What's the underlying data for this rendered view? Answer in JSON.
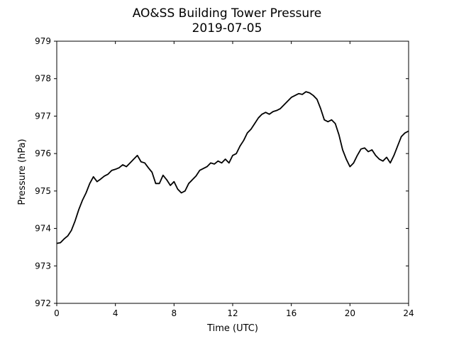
{
  "chart_data": {
    "type": "line",
    "title": "AO&SS Building Tower Pressure",
    "subtitle": "2019-07-05",
    "xlabel": "Time (UTC)",
    "ylabel": "Pressure (hPa)",
    "xlim": [
      0,
      24
    ],
    "ylim": [
      972,
      979
    ],
    "xticks": [
      0,
      4,
      8,
      12,
      16,
      20,
      24
    ],
    "yticks": [
      972,
      973,
      974,
      975,
      976,
      977,
      978,
      979
    ],
    "grid": false,
    "line_color": "#000000",
    "series": [
      {
        "x": [
          0.0,
          0.25,
          0.5,
          0.75,
          1.0,
          1.25,
          1.5,
          1.75,
          2.0,
          2.25,
          2.5,
          2.75,
          3.0,
          3.25,
          3.5,
          3.75,
          4.0,
          4.25,
          4.5,
          4.75,
          5.0,
          5.25,
          5.5,
          5.75,
          6.0,
          6.25,
          6.5,
          6.75,
          7.0,
          7.25,
          7.5,
          7.75,
          8.0,
          8.25,
          8.5,
          8.75,
          9.0,
          9.25,
          9.5,
          9.75,
          10.0,
          10.25,
          10.5,
          10.75,
          11.0,
          11.25,
          11.5,
          11.75,
          12.0,
          12.25,
          12.5,
          12.75,
          13.0,
          13.25,
          13.5,
          13.75,
          14.0,
          14.25,
          14.5,
          14.75,
          15.0,
          15.25,
          15.5,
          15.75,
          16.0,
          16.25,
          16.5,
          16.75,
          17.0,
          17.25,
          17.5,
          17.75,
          18.0,
          18.25,
          18.5,
          18.75,
          19.0,
          19.25,
          19.5,
          19.75,
          20.0,
          20.25,
          20.5,
          20.75,
          21.0,
          21.25,
          21.5,
          21.75,
          22.0,
          22.25,
          22.5,
          22.75,
          23.0,
          23.25,
          23.5,
          23.75,
          24.0
        ],
        "y": [
          973.6,
          973.62,
          973.72,
          973.8,
          973.95,
          974.2,
          974.5,
          974.75,
          974.95,
          975.2,
          975.38,
          975.25,
          975.32,
          975.4,
          975.45,
          975.55,
          975.58,
          975.62,
          975.7,
          975.65,
          975.75,
          975.85,
          975.95,
          975.78,
          975.75,
          975.62,
          975.5,
          975.2,
          975.2,
          975.42,
          975.3,
          975.15,
          975.25,
          975.05,
          974.95,
          975.0,
          975.2,
          975.3,
          975.4,
          975.55,
          975.6,
          975.65,
          975.75,
          975.72,
          975.8,
          975.75,
          975.85,
          975.75,
          975.95,
          976.0,
          976.2,
          976.35,
          976.55,
          976.65,
          976.8,
          976.95,
          977.05,
          977.1,
          977.05,
          977.12,
          977.15,
          977.2,
          977.3,
          977.4,
          977.5,
          977.55,
          977.6,
          977.58,
          977.65,
          977.62,
          977.55,
          977.45,
          977.2,
          976.9,
          976.85,
          976.9,
          976.8,
          976.5,
          976.1,
          975.85,
          975.65,
          975.75,
          975.95,
          976.12,
          976.15,
          976.05,
          976.1,
          975.95,
          975.85,
          975.8,
          975.9,
          975.75,
          975.95,
          976.2,
          976.45,
          976.55,
          976.6
        ]
      }
    ]
  }
}
